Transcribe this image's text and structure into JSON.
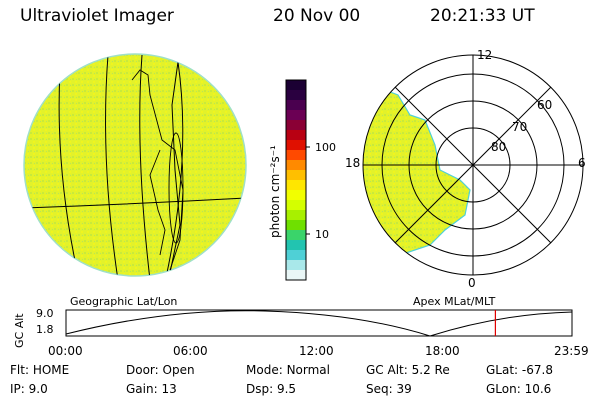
{
  "header": {
    "title": "Ultraviolet Imager",
    "date": "20 Nov 00",
    "time": "20:21:33 UT"
  },
  "left_panel": {
    "caption": "Geographic Lat/Lon"
  },
  "colorbar": {
    "unit_label": "photon cm⁻²s⁻¹",
    "ticks": [
      "100",
      "10"
    ],
    "colors": [
      "#1b0033",
      "#2a0040",
      "#4a004f",
      "#6b0054",
      "#8a0035",
      "#b80012",
      "#e01000",
      "#ff4a00",
      "#ff8a00",
      "#ffbf00",
      "#ffe600",
      "#f2ff00",
      "#d4ff00",
      "#a8f000",
      "#6fe000",
      "#3ad46a",
      "#22c4b0",
      "#4fd0d6",
      "#a9e8ea",
      "#e9f6f6"
    ]
  },
  "right_panel": {
    "caption": "Apex MLat/MLT",
    "mlt_labels": [
      "12",
      "18",
      "6",
      "0"
    ],
    "lat_labels": [
      "60",
      "70",
      "80"
    ]
  },
  "timeline": {
    "axis_label": "GC Alt",
    "y_labels": [
      "9.0",
      "1.8"
    ],
    "x_labels": [
      "00:00",
      "06:00",
      "12:00",
      "18:00",
      "23:59"
    ],
    "current_fraction": 0.8486
  },
  "status": {
    "row1": [
      {
        "k": "Flt:",
        "v": "HOME"
      },
      {
        "k": "Door:",
        "v": "Open"
      },
      {
        "k": "Mode:",
        "v": "Normal"
      },
      {
        "k": "GC Alt:",
        "v": "5.2 Re"
      },
      {
        "k": "GLat:",
        "v": "-67.8"
      }
    ],
    "row2": [
      {
        "k": "IP:",
        "v": "9.0"
      },
      {
        "k": "Gain:",
        "v": "13"
      },
      {
        "k": "Dsp:",
        "v": "9.5"
      },
      {
        "k": "Seq:",
        "v": "39"
      },
      {
        "k": "GLon:",
        "v": "10.6"
      }
    ]
  }
}
